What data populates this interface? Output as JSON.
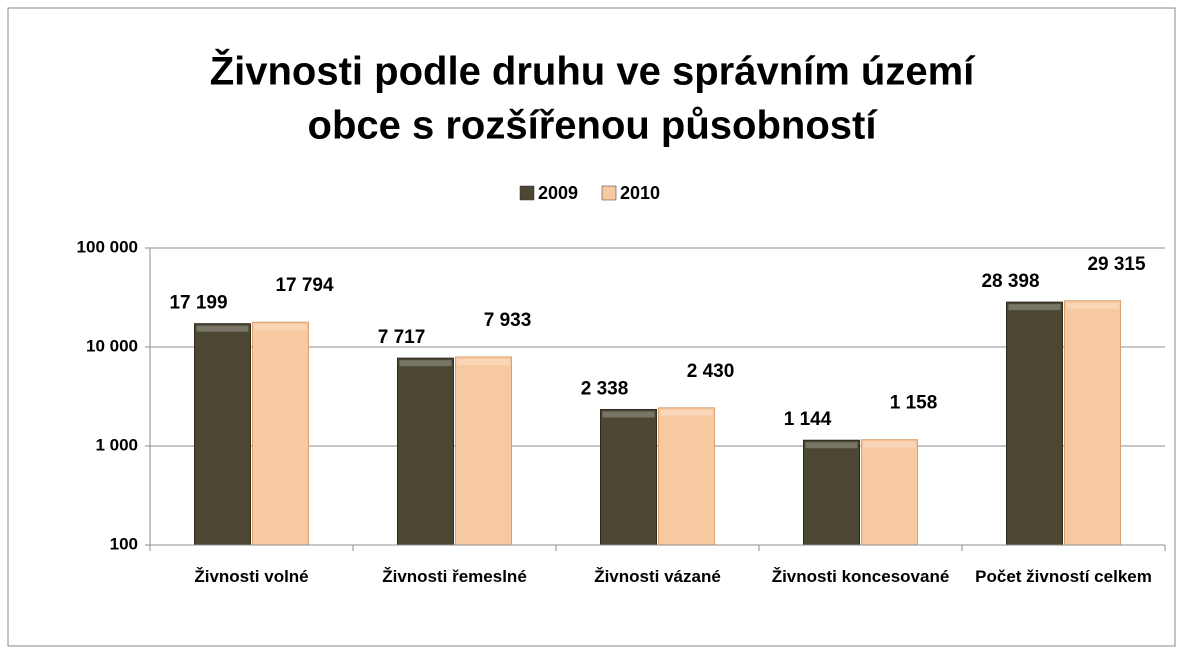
{
  "chart_data": {
    "type": "bar",
    "title": [
      "Živnosti podle druhu ve správním území",
      "obce s rozšířenou působností"
    ],
    "categories": [
      "Živnosti volné",
      "Živnosti řemeslné",
      "Živnosti vázané",
      "Živnosti koncesované",
      "Počet živností celkem"
    ],
    "series": [
      {
        "name": "2009",
        "color": "#4b4733",
        "values": [
          17199,
          7717,
          2338,
          1144,
          28398
        ],
        "value_labels": [
          "17 199",
          "7 717",
          "2 338",
          "1 144",
          "28 398"
        ]
      },
      {
        "name": "2010",
        "color": "#f7c9a0",
        "values": [
          17794,
          7933,
          2430,
          1158,
          29315
        ],
        "value_labels": [
          "17 794",
          "7 933",
          "2 430",
          "1 158",
          "29 315"
        ]
      }
    ],
    "log_scale": true,
    "ylim": [
      100,
      100000
    ],
    "yticks": [
      {
        "value": 100,
        "label": "100"
      },
      {
        "value": 1000,
        "label": "1 000"
      },
      {
        "value": 10000,
        "label": "10 000"
      },
      {
        "value": 100000,
        "label": "100 000"
      }
    ],
    "grid": true,
    "legend": "top"
  }
}
